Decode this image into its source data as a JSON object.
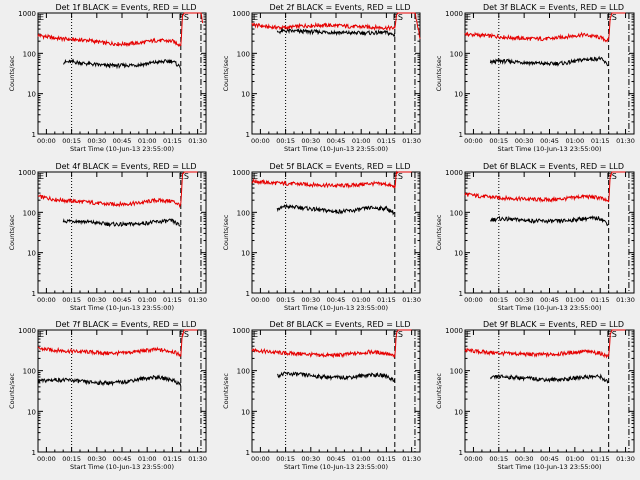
{
  "page": {
    "background": "#efefef"
  },
  "style": {
    "events_color": "#000000",
    "lld_color": "#e60000"
  },
  "shared": {
    "xlabel": "Start Time (10-Jun-13 23:55:00)",
    "ylabel": "Counts/sec",
    "x_tick_labels": [
      "00:00",
      "00:15",
      "00:30",
      "00:45",
      "01:00",
      "01:15",
      "01:30"
    ],
    "y_tick_labels": [
      "1",
      "10",
      "100",
      "1000"
    ],
    "marker_left": "E",
    "marker_right": "ES"
  },
  "chart_data": [
    {
      "type": "line",
      "title": "Det 1f BLACK = Events, RED = LLD",
      "xlabel": "Start Time (10-Jun-13 23:55:00)",
      "ylabel": "Counts/sec",
      "x_unit": "minutes since 23:55:00",
      "xlim": [
        0,
        100
      ],
      "ylim": [
        1,
        1000
      ],
      "yscale": "log",
      "vertical_markers": [
        {
          "x": 20,
          "style": "dotted"
        },
        {
          "x": 85,
          "style": "dashed"
        },
        {
          "x": 97,
          "style": "dashdot"
        }
      ],
      "series": [
        {
          "name": "LLD",
          "color": "#e60000",
          "x": [
            0,
            10,
            20,
            30,
            40,
            50,
            60,
            70,
            80,
            85,
            86,
            87,
            88,
            90,
            95,
            97,
            98
          ],
          "values": [
            280,
            240,
            220,
            210,
            180,
            170,
            180,
            210,
            200,
            160,
            800,
            1000,
            1000,
            1000,
            1000,
            1000,
            600
          ]
        },
        {
          "name": "Events",
          "color": "#000000",
          "x": [
            15,
            20,
            30,
            40,
            50,
            60,
            70,
            80,
            85
          ],
          "values": [
            60,
            62,
            55,
            50,
            50,
            52,
            60,
            65,
            45
          ]
        }
      ]
    },
    {
      "type": "line",
      "title": "Det 2f BLACK = Events, RED = LLD",
      "xlabel": "Start Time (10-Jun-13 23:55:00)",
      "ylabel": "Counts/sec",
      "x_unit": "minutes since 23:55:00",
      "xlim": [
        0,
        100
      ],
      "ylim": [
        1,
        1000
      ],
      "yscale": "log",
      "vertical_markers": [
        {
          "x": 20,
          "style": "dotted"
        },
        {
          "x": 85,
          "style": "dashed"
        },
        {
          "x": 97,
          "style": "dashdot"
        }
      ],
      "series": [
        {
          "name": "LLD",
          "color": "#e60000",
          "x": [
            0,
            10,
            20,
            30,
            40,
            50,
            60,
            70,
            80,
            85,
            86,
            87,
            88,
            90,
            95,
            97,
            100
          ],
          "values": [
            520,
            450,
            430,
            480,
            500,
            490,
            460,
            450,
            430,
            420,
            900,
            1000,
            1000,
            1000,
            1000,
            1000,
            250
          ]
        },
        {
          "name": "Events",
          "color": "#000000",
          "x": [
            15,
            20,
            30,
            40,
            50,
            60,
            70,
            80,
            85
          ],
          "values": [
            340,
            360,
            350,
            340,
            330,
            320,
            320,
            330,
            280
          ]
        }
      ]
    },
    {
      "type": "line",
      "title": "Det 3f BLACK = Events, RED = LLD",
      "xlabel": "Start Time (10-Jun-13 23:55:00)",
      "ylabel": "Counts/sec",
      "x_unit": "minutes since 23:55:00",
      "xlim": [
        0,
        100
      ],
      "ylim": [
        1,
        1000
      ],
      "yscale": "log",
      "vertical_markers": [
        {
          "x": 20,
          "style": "dotted"
        },
        {
          "x": 85,
          "style": "dashed"
        },
        {
          "x": 97,
          "style": "dashdot"
        }
      ],
      "series": [
        {
          "name": "LLD",
          "color": "#e60000",
          "x": [
            0,
            10,
            20,
            30,
            40,
            50,
            60,
            70,
            80,
            85,
            86,
            87,
            88,
            90,
            95
          ],
          "values": [
            300,
            280,
            260,
            240,
            230,
            230,
            260,
            290,
            250,
            200,
            800,
            1000,
            1000,
            1000,
            1000
          ]
        },
        {
          "name": "Events",
          "color": "#000000",
          "x": [
            15,
            20,
            30,
            40,
            50,
            60,
            70,
            80,
            85
          ],
          "values": [
            60,
            65,
            62,
            58,
            55,
            58,
            70,
            75,
            50
          ]
        }
      ]
    },
    {
      "type": "line",
      "title": "Det 4f BLACK = Events, RED = LLD",
      "xlabel": "Start Time (10-Jun-13 23:55:00)",
      "ylabel": "Counts/sec",
      "x_unit": "minutes since 23:55:00",
      "xlim": [
        0,
        100
      ],
      "ylim": [
        1,
        1000
      ],
      "yscale": "log",
      "vertical_markers": [
        {
          "x": 20,
          "style": "dotted"
        },
        {
          "x": 85,
          "style": "dashed"
        },
        {
          "x": 97,
          "style": "dashdot"
        }
      ],
      "series": [
        {
          "name": "LLD",
          "color": "#e60000",
          "x": [
            0,
            10,
            20,
            30,
            40,
            50,
            60,
            70,
            80,
            85,
            86,
            87,
            88,
            90,
            95
          ],
          "values": [
            250,
            210,
            190,
            180,
            160,
            160,
            170,
            200,
            190,
            150,
            800,
            1000,
            1000,
            1000,
            1000
          ]
        },
        {
          "name": "Events",
          "color": "#000000",
          "x": [
            15,
            20,
            30,
            40,
            50,
            60,
            70,
            80,
            85
          ],
          "values": [
            60,
            62,
            58,
            52,
            50,
            52,
            58,
            62,
            45
          ]
        }
      ]
    },
    {
      "type": "line",
      "title": "Det 5f BLACK = Events, RED = LLD",
      "xlabel": "Start Time (10-Jun-13 23:55:00)",
      "ylabel": "Counts/sec",
      "x_unit": "minutes since 23:55:00",
      "xlim": [
        0,
        100
      ],
      "ylim": [
        1,
        1000
      ],
      "yscale": "log",
      "vertical_markers": [
        {
          "x": 20,
          "style": "dotted"
        },
        {
          "x": 85,
          "style": "dashed"
        },
        {
          "x": 97,
          "style": "dashdot"
        }
      ],
      "series": [
        {
          "name": "LLD",
          "color": "#e60000",
          "x": [
            0,
            10,
            20,
            30,
            40,
            50,
            60,
            70,
            80,
            85,
            86,
            87,
            88,
            90,
            95
          ],
          "values": [
            600,
            540,
            520,
            500,
            480,
            460,
            470,
            520,
            500,
            420,
            900,
            1000,
            1000,
            1000,
            1000
          ]
        },
        {
          "name": "Events",
          "color": "#000000",
          "x": [
            15,
            20,
            30,
            40,
            50,
            60,
            70,
            80,
            85
          ],
          "values": [
            120,
            140,
            130,
            115,
            105,
            110,
            130,
            125,
            95
          ]
        }
      ]
    },
    {
      "type": "line",
      "title": "Det 6f BLACK = Events, RED = LLD",
      "xlabel": "Start Time (10-Jun-13 23:55:00)",
      "ylabel": "Counts/sec",
      "x_unit": "minutes since 23:55:00",
      "xlim": [
        0,
        100
      ],
      "ylim": [
        1,
        1000
      ],
      "yscale": "log",
      "vertical_markers": [
        {
          "x": 20,
          "style": "dotted"
        },
        {
          "x": 85,
          "style": "dashed"
        },
        {
          "x": 97,
          "style": "dashdot"
        }
      ],
      "series": [
        {
          "name": "LLD",
          "color": "#e60000",
          "x": [
            0,
            10,
            20,
            30,
            40,
            50,
            60,
            70,
            80,
            85,
            86,
            87,
            88,
            90,
            95
          ],
          "values": [
            280,
            250,
            230,
            220,
            210,
            205,
            220,
            250,
            230,
            180,
            800,
            1000,
            1000,
            1000,
            1000
          ]
        },
        {
          "name": "Events",
          "color": "#000000",
          "x": [
            15,
            20,
            30,
            40,
            50,
            60,
            70,
            80,
            85
          ],
          "values": [
            65,
            70,
            66,
            62,
            60,
            62,
            70,
            72,
            50
          ]
        }
      ]
    },
    {
      "type": "line",
      "title": "Det 7f BLACK = Events, RED = LLD",
      "xlabel": "Start Time (10-Jun-13 23:55:00)",
      "ylabel": "Counts/sec",
      "x_unit": "minutes since 23:55:00",
      "xlim": [
        0,
        100
      ],
      "ylim": [
        1,
        1000
      ],
      "yscale": "log",
      "vertical_markers": [
        {
          "x": 20,
          "style": "dotted"
        },
        {
          "x": 85,
          "style": "dashed"
        },
        {
          "x": 97,
          "style": "dashdot"
        }
      ],
      "series": [
        {
          "name": "LLD",
          "color": "#e60000",
          "x": [
            0,
            10,
            20,
            30,
            40,
            50,
            60,
            70,
            80,
            85,
            86,
            87,
            88,
            90,
            95
          ],
          "values": [
            350,
            320,
            300,
            290,
            270,
            270,
            300,
            330,
            300,
            240,
            800,
            1000,
            1000,
            1000,
            1000
          ]
        },
        {
          "name": "Events",
          "color": "#000000",
          "x": [
            0,
            10,
            20,
            30,
            40,
            50,
            60,
            70,
            80,
            85
          ],
          "values": [
            55,
            60,
            58,
            52,
            50,
            52,
            62,
            70,
            60,
            45
          ]
        }
      ]
    },
    {
      "type": "line",
      "title": "Det 8f BLACK = Events, RED = LLD",
      "xlabel": "Start Time (10-Jun-13 23:55:00)",
      "ylabel": "Counts/sec",
      "x_unit": "minutes since 23:55:00",
      "xlim": [
        0,
        100
      ],
      "ylim": [
        1,
        1000
      ],
      "yscale": "log",
      "vertical_markers": [
        {
          "x": 20,
          "style": "dotted"
        },
        {
          "x": 85,
          "style": "dashed"
        },
        {
          "x": 97,
          "style": "dashdot"
        }
      ],
      "series": [
        {
          "name": "LLD",
          "color": "#e60000",
          "x": [
            0,
            10,
            20,
            30,
            40,
            50,
            60,
            70,
            80,
            85,
            86,
            87,
            88,
            90,
            95
          ],
          "values": [
            330,
            290,
            270,
            260,
            240,
            240,
            260,
            290,
            270,
            220,
            800,
            1000,
            1000,
            1000,
            1000
          ]
        },
        {
          "name": "Events",
          "color": "#000000",
          "x": [
            15,
            20,
            30,
            40,
            50,
            60,
            70,
            80,
            85
          ],
          "values": [
            75,
            85,
            80,
            72,
            68,
            70,
            80,
            75,
            55
          ]
        }
      ]
    },
    {
      "type": "line",
      "title": "Det 9f BLACK = Events, RED = LLD",
      "xlabel": "Start Time (10-Jun-13 23:55:00)",
      "ylabel": "Counts/sec",
      "x_unit": "minutes since 23:55:00",
      "xlim": [
        0,
        100
      ],
      "ylim": [
        1,
        1000
      ],
      "yscale": "log",
      "vertical_markers": [
        {
          "x": 20,
          "style": "dotted"
        },
        {
          "x": 85,
          "style": "dashed"
        },
        {
          "x": 97,
          "style": "dashdot"
        }
      ],
      "series": [
        {
          "name": "LLD",
          "color": "#e60000",
          "x": [
            0,
            10,
            20,
            30,
            40,
            50,
            60,
            70,
            80,
            85,
            86,
            87,
            88,
            90,
            95
          ],
          "values": [
            320,
            290,
            270,
            260,
            250,
            250,
            270,
            300,
            270,
            220,
            800,
            1000,
            1000,
            1000,
            1000
          ]
        },
        {
          "name": "Events",
          "color": "#000000",
          "x": [
            15,
            20,
            30,
            40,
            50,
            60,
            70,
            80,
            85
          ],
          "values": [
            65,
            72,
            68,
            64,
            60,
            62,
            70,
            72,
            50
          ]
        }
      ]
    }
  ]
}
